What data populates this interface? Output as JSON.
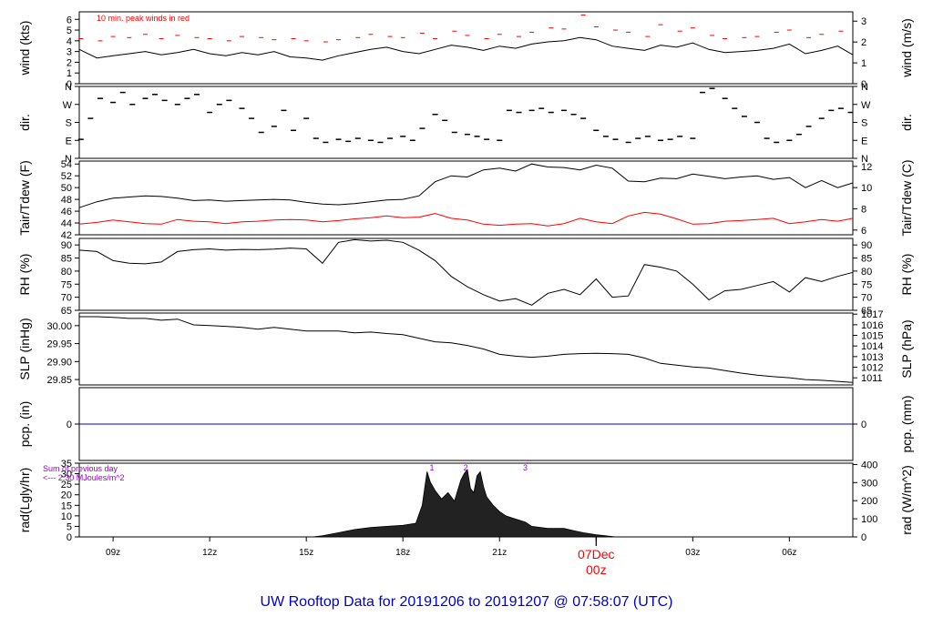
{
  "title": "UW Rooftop Data for 20191206  to  20191207 @ 07:58:07  (UTC)",
  "colors": {
    "title": "#0000cc",
    "series_main": "#000000",
    "series_alt": "#ff0000",
    "precip": "#0000cc",
    "annotation": "#9900cc",
    "date": "#ff0000"
  },
  "time_axis": {
    "tick_labels": [
      "09z",
      "12z",
      "15z",
      "18z",
      "21z",
      "00z",
      "03z",
      "06z"
    ],
    "tick_hours": [
      9,
      12,
      15,
      18,
      21,
      24,
      27,
      30
    ],
    "date_label": "07Dec",
    "date_hour": 24,
    "range_hours": [
      7.95,
      31.97
    ]
  },
  "chart_data": [
    {
      "id": "wind",
      "type": "line",
      "ylabel_left": "wind (kts)",
      "ylabel_right": "wind (m/s)",
      "ylim": [
        0,
        6.7
      ],
      "left_ticks": [
        "0",
        "1",
        "2",
        "3",
        "4",
        "5",
        "6"
      ],
      "right_ticks": [
        "0",
        "1",
        "2",
        "3"
      ],
      "right_tick_values": [
        0,
        1,
        2,
        3
      ],
      "right_scale": 0.5144,
      "annotation": "10 min. peak winds in red",
      "series": [
        {
          "name": "10 min. peak winds",
          "style": "dash",
          "x": [
            8.0,
            8.6,
            9.0,
            9.5,
            10.0,
            10.5,
            11.0,
            11.6,
            12.0,
            12.6,
            13.0,
            13.6,
            14.0,
            14.6,
            15.0,
            15.6,
            16.0,
            16.6,
            17.0,
            17.6,
            18.0,
            18.6,
            19.0,
            19.6,
            20.0,
            20.6,
            21.0,
            21.6,
            22.0,
            22.6,
            23.0,
            23.6,
            24.0,
            24.6,
            25.0,
            25.6,
            26.0,
            26.6,
            27.0,
            27.6,
            28.0,
            28.6,
            29.0,
            29.6,
            30.0,
            30.6,
            31.0,
            31.6
          ],
          "y": [
            4.2,
            4.0,
            4.4,
            4.3,
            4.6,
            4.2,
            4.5,
            4.3,
            4.2,
            4.0,
            4.4,
            4.3,
            4.1,
            4.2,
            4.0,
            3.9,
            4.1,
            4.3,
            4.6,
            4.4,
            4.3,
            4.7,
            4.2,
            4.9,
            4.5,
            4.2,
            4.6,
            4.4,
            4.8,
            5.2,
            5.1,
            6.4,
            5.3,
            5.0,
            4.8,
            4.4,
            5.5,
            4.9,
            5.2,
            4.5,
            4.2,
            4.3,
            4.4,
            4.8,
            5.0,
            4.3,
            4.6,
            4.9
          ]
        },
        {
          "name": "wind",
          "x": [
            7.95,
            8.5,
            9.0,
            9.5,
            10.0,
            10.5,
            11.0,
            11.5,
            12.0,
            12.5,
            13.0,
            13.5,
            14.0,
            14.5,
            15.0,
            15.5,
            16.0,
            16.5,
            17.0,
            17.5,
            18.0,
            18.5,
            19.0,
            19.5,
            20.0,
            20.5,
            21.0,
            21.5,
            22.0,
            22.5,
            23.0,
            23.5,
            24.0,
            24.5,
            25.0,
            25.5,
            26.0,
            26.5,
            27.0,
            27.5,
            28.0,
            28.5,
            29.0,
            29.5,
            30.0,
            30.5,
            31.0,
            31.5,
            31.97
          ],
          "y": [
            3.2,
            2.4,
            2.6,
            2.8,
            3.0,
            2.7,
            2.9,
            3.2,
            2.8,
            2.6,
            2.9,
            2.7,
            3.0,
            2.5,
            2.4,
            2.2,
            2.6,
            2.9,
            3.2,
            3.4,
            3.0,
            2.8,
            3.2,
            3.6,
            3.4,
            3.1,
            3.5,
            3.3,
            3.7,
            3.9,
            4.0,
            4.3,
            4.1,
            3.5,
            3.3,
            3.1,
            3.6,
            3.4,
            3.8,
            3.2,
            2.9,
            3.0,
            3.1,
            3.3,
            3.7,
            2.8,
            3.1,
            3.5,
            2.7
          ]
        }
      ]
    },
    {
      "id": "dir",
      "type": "scatter",
      "ylabel_left": "dir.",
      "ylabel_right": "dir.",
      "ylim": [
        0,
        360
      ],
      "left_ticks": [
        "N",
        "E",
        "S",
        "W",
        "N"
      ],
      "right_ticks": [
        "N",
        "E",
        "S",
        "W",
        "N"
      ],
      "tick_values": [
        0,
        90,
        180,
        270,
        360
      ],
      "series": [
        {
          "name": "direction",
          "x": [
            8.0,
            8.3,
            8.6,
            9.0,
            9.3,
            9.6,
            10.0,
            10.3,
            10.6,
            11.0,
            11.3,
            11.6,
            12.0,
            12.3,
            12.6,
            13.0,
            13.3,
            13.6,
            14.0,
            14.3,
            14.6,
            15.0,
            15.3,
            15.6,
            16.0,
            16.3,
            16.6,
            17.0,
            17.3,
            17.6,
            18.0,
            18.3,
            18.6,
            19.0,
            19.3,
            19.6,
            20.0,
            20.3,
            20.6,
            21.0,
            21.3,
            21.6,
            22.0,
            22.3,
            22.6,
            23.0,
            23.3,
            23.6,
            24.0,
            24.3,
            24.6,
            25.0,
            25.3,
            25.6,
            26.0,
            26.3,
            26.6,
            27.0,
            27.3,
            27.6,
            28.0,
            28.3,
            28.6,
            29.0,
            29.3,
            29.6,
            30.0,
            30.3,
            30.6,
            31.0,
            31.3,
            31.6,
            31.9
          ],
          "y": [
            95,
            200,
            300,
            280,
            330,
            270,
            300,
            320,
            290,
            270,
            300,
            320,
            230,
            270,
            290,
            250,
            200,
            130,
            160,
            240,
            140,
            200,
            100,
            80,
            95,
            85,
            100,
            90,
            80,
            100,
            110,
            90,
            150,
            220,
            190,
            130,
            120,
            110,
            95,
            90,
            240,
            230,
            240,
            250,
            230,
            240,
            220,
            200,
            140,
            110,
            95,
            80,
            100,
            110,
            90,
            95,
            110,
            100,
            330,
            350,
            300,
            250,
            210,
            180,
            100,
            80,
            90,
            120,
            160,
            200,
            240,
            250,
            230
          ]
        }
      ]
    },
    {
      "id": "temp",
      "type": "line",
      "ylabel_left": "Tair/Tdew (F)",
      "ylabel_right": "Tair/Tdew (C)",
      "ylim": [
        42,
        54.5
      ],
      "left_ticks": [
        "42",
        "44",
        "46",
        "48",
        "50",
        "52",
        "54"
      ],
      "right_ticks": [
        "6",
        "8",
        "10",
        "12"
      ],
      "right_tick_values": [
        6,
        8,
        10,
        12
      ],
      "series": [
        {
          "name": "Tair",
          "x": [
            7.95,
            8.5,
            9.0,
            9.5,
            10.0,
            10.5,
            11.0,
            11.5,
            12.0,
            12.5,
            13.0,
            13.5,
            14.0,
            14.5,
            15.0,
            15.5,
            16.0,
            16.5,
            17.0,
            17.5,
            18.0,
            18.5,
            19.0,
            19.5,
            20.0,
            20.5,
            21.0,
            21.5,
            22.0,
            22.5,
            23.0,
            23.5,
            24.0,
            24.5,
            25.0,
            25.5,
            26.0,
            26.5,
            27.0,
            27.5,
            28.0,
            28.5,
            29.0,
            29.5,
            30.0,
            30.5,
            31.0,
            31.5,
            31.97
          ],
          "y": [
            46.6,
            47.6,
            48.2,
            48.4,
            48.6,
            48.5,
            48.2,
            47.8,
            47.9,
            47.7,
            47.8,
            47.9,
            48.0,
            47.9,
            47.5,
            47.2,
            47.1,
            47.3,
            47.6,
            47.9,
            48.0,
            48.6,
            51.0,
            52.0,
            51.8,
            53.0,
            53.3,
            52.8,
            54.0,
            53.5,
            53.4,
            53.0,
            53.8,
            53.3,
            51.1,
            51.0,
            51.6,
            51.5,
            52.3,
            51.9,
            51.5,
            51.8,
            52.0,
            51.4,
            51.7,
            50.0,
            51.2,
            50.0,
            50.8
          ]
        },
        {
          "name": "Tdew",
          "x": [
            7.95,
            8.5,
            9.0,
            9.5,
            10.0,
            10.5,
            11.0,
            11.5,
            12.0,
            12.5,
            13.0,
            13.5,
            14.0,
            14.5,
            15.0,
            15.5,
            16.0,
            16.5,
            17.0,
            17.5,
            18.0,
            18.5,
            19.0,
            19.5,
            20.0,
            20.5,
            21.0,
            21.5,
            22.0,
            22.5,
            23.0,
            23.5,
            24.0,
            24.5,
            25.0,
            25.5,
            26.0,
            26.5,
            27.0,
            27.5,
            28.0,
            28.5,
            29.0,
            29.5,
            30.0,
            30.5,
            31.0,
            31.5,
            31.97
          ],
          "y": [
            43.8,
            44.1,
            44.5,
            44.2,
            43.9,
            43.8,
            44.6,
            44.3,
            44.2,
            43.9,
            44.2,
            44.3,
            44.5,
            44.6,
            44.5,
            44.2,
            44.4,
            44.7,
            44.9,
            45.2,
            44.9,
            45.0,
            45.6,
            44.8,
            44.5,
            43.8,
            43.6,
            43.8,
            43.9,
            43.5,
            43.9,
            44.8,
            44.2,
            43.9,
            45.2,
            45.8,
            45.5,
            44.7,
            43.8,
            43.9,
            44.3,
            44.4,
            44.6,
            44.8,
            43.9,
            44.2,
            44.6,
            44.3,
            44.8
          ]
        }
      ]
    },
    {
      "id": "rh",
      "type": "line",
      "ylabel_left": "RH (%)",
      "ylabel_right": "RH (%)",
      "ylim": [
        65,
        92.5
      ],
      "left_ticks": [
        "65",
        "70",
        "75",
        "80",
        "85",
        "90"
      ],
      "right_ticks": [
        "65",
        "70",
        "75",
        "80",
        "85",
        "90"
      ],
      "series": [
        {
          "name": "RH",
          "x": [
            7.95,
            8.5,
            9.0,
            9.5,
            10.0,
            10.5,
            11.0,
            11.5,
            12.0,
            12.5,
            13.0,
            13.5,
            14.0,
            14.5,
            15.0,
            15.5,
            16.0,
            16.5,
            17.0,
            17.5,
            18.0,
            18.5,
            19.0,
            19.5,
            20.0,
            20.5,
            21.0,
            21.5,
            22.0,
            22.5,
            23.0,
            23.5,
            24.0,
            24.5,
            25.0,
            25.5,
            26.0,
            26.5,
            27.0,
            27.5,
            28.0,
            28.5,
            29.0,
            29.5,
            30.0,
            30.5,
            31.0,
            31.5,
            31.97
          ],
          "y": [
            88.0,
            87.5,
            84.0,
            83.0,
            82.8,
            83.5,
            87.5,
            88.2,
            88.5,
            88.0,
            88.3,
            88.2,
            88.4,
            88.8,
            88.5,
            83.0,
            91.0,
            92.0,
            91.5,
            91.8,
            91.0,
            88.0,
            84.0,
            78.0,
            74.0,
            71.0,
            68.5,
            69.5,
            67.0,
            71.5,
            73.0,
            71.0,
            77.0,
            70.0,
            70.5,
            82.5,
            81.5,
            80.0,
            75.0,
            69.0,
            72.5,
            73.0,
            74.5,
            76.0,
            72.0,
            77.5,
            76.0,
            78.0,
            79.5
          ]
        }
      ]
    },
    {
      "id": "slp",
      "type": "line",
      "ylabel_left": "SLP (inHg)",
      "ylabel_right": "SLP (hPa)",
      "ylim": [
        29.835,
        30.035
      ],
      "left_ticks": [
        "29.85",
        "29.90",
        "29.95",
        "30.00"
      ],
      "left_tick_values": [
        29.85,
        29.9,
        29.95,
        30.0
      ],
      "right_ticks": [
        "1011",
        "1012",
        "1013",
        "1014",
        "1015",
        "1016",
        "1017"
      ],
      "right_tick_values": [
        1011,
        1012,
        1013,
        1014,
        1015,
        1016,
        1017
      ],
      "right_scale": 33.8639,
      "series": [
        {
          "name": "SLP",
          "x": [
            7.95,
            8.5,
            9.0,
            9.5,
            10.0,
            10.5,
            11.0,
            11.5,
            12.0,
            12.5,
            13.0,
            13.5,
            14.0,
            14.5,
            15.0,
            15.5,
            16.0,
            16.5,
            17.0,
            17.5,
            18.0,
            18.5,
            19.0,
            19.5,
            20.0,
            20.5,
            21.0,
            21.5,
            22.0,
            22.5,
            23.0,
            23.5,
            24.0,
            24.5,
            25.0,
            25.5,
            26.0,
            26.5,
            27.0,
            27.5,
            28.0,
            28.5,
            29.0,
            29.5,
            30.0,
            30.5,
            31.0,
            31.5,
            31.97
          ],
          "y": [
            30.025,
            30.025,
            30.023,
            30.02,
            30.02,
            30.015,
            30.018,
            30.002,
            30.0,
            29.998,
            29.995,
            29.99,
            29.995,
            29.99,
            29.985,
            29.985,
            29.985,
            29.98,
            29.982,
            29.978,
            29.975,
            29.965,
            29.955,
            29.952,
            29.945,
            29.935,
            29.92,
            29.915,
            29.912,
            29.915,
            29.92,
            29.922,
            29.923,
            29.922,
            29.92,
            29.91,
            29.895,
            29.89,
            29.885,
            29.882,
            29.875,
            29.868,
            29.862,
            29.858,
            29.855,
            29.85,
            29.848,
            29.845,
            29.842
          ]
        }
      ]
    },
    {
      "id": "pcp",
      "type": "line",
      "ylabel_left": "pcp. (in)",
      "ylabel_right": "pcp. (mm)",
      "ylim": [
        -1,
        1
      ],
      "left_ticks": [
        "0"
      ],
      "right_ticks": [
        "0"
      ],
      "series": [
        {
          "name": "pcp",
          "x": [
            7.95,
            31.97
          ],
          "y": [
            0,
            0
          ]
        }
      ]
    },
    {
      "id": "rad",
      "type": "area",
      "ylabel_left": "rad(Lgly/hr)",
      "ylabel_right": "rad (W/m^2)",
      "ylim": [
        0,
        35
      ],
      "left_ticks": [
        "0",
        "5",
        "10",
        "15",
        "20",
        "25",
        "30",
        "35"
      ],
      "right_ticks": [
        "0",
        "100",
        "200",
        "300",
        "400"
      ],
      "right_tick_values": [
        0,
        100,
        200,
        300,
        400
      ],
      "right_scale": 11.63,
      "annotation_lines": [
        "Sum of previous day",
        "<--- 2.30 MJoules/m^2"
      ],
      "peak_markers": [
        "1",
        "2",
        "3"
      ],
      "peak_marker_hours": [
        18.9,
        19.95,
        21.8
      ],
      "series": [
        {
          "name": "radiation",
          "x": [
            15.2,
            15.5,
            16.0,
            16.5,
            17.0,
            17.5,
            18.0,
            18.4,
            18.6,
            18.75,
            18.85,
            19.0,
            19.2,
            19.4,
            19.6,
            19.8,
            19.9,
            20.0,
            20.1,
            20.2,
            20.3,
            20.4,
            20.5,
            20.6,
            20.8,
            21.0,
            21.2,
            21.4,
            21.6,
            21.8,
            22.0,
            22.5,
            23.0,
            23.3,
            23.6,
            24.0,
            24.3,
            24.6
          ],
          "y": [
            0,
            0.5,
            2.0,
            3.5,
            4.5,
            5.0,
            5.5,
            6.5,
            15,
            31,
            26,
            22,
            18,
            21,
            17,
            27,
            30,
            32,
            23,
            21,
            29,
            31,
            24,
            19,
            15,
            12,
            10,
            9,
            8,
            7,
            5,
            4,
            4,
            3,
            2,
            1,
            0.5,
            0
          ]
        }
      ]
    }
  ]
}
